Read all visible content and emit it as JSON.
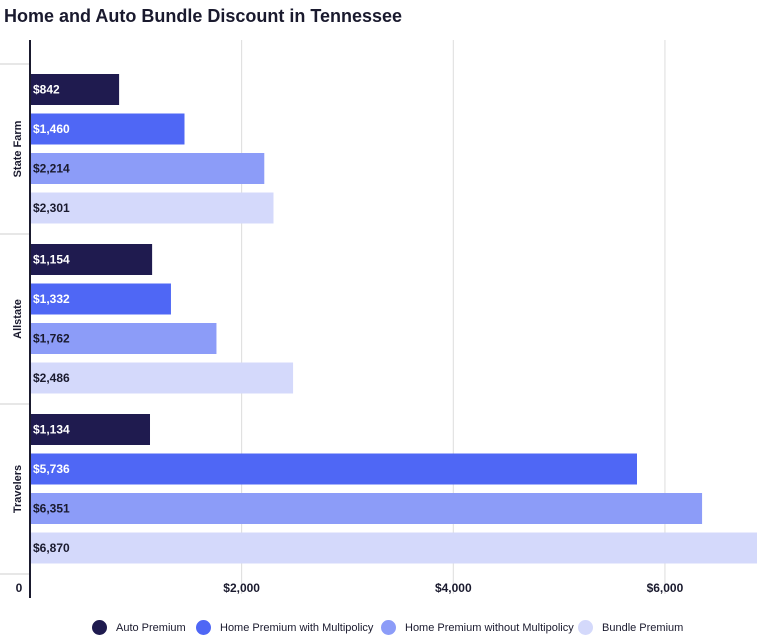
{
  "title": "Home and Auto Bundle Discount in Tennessee",
  "colors": {
    "auto": "#1f1b4f",
    "with_multi": "#4f67f5",
    "without_multi": "#8c9cf8",
    "bundle": "#d4d9fb",
    "grid": "#dcdcdc",
    "axis": "#1a1a2e"
  },
  "chart_data": {
    "type": "bar",
    "orientation": "horizontal",
    "categories": [
      "State Farm",
      "Allstate",
      "Travelers"
    ],
    "series": [
      {
        "name": "Auto Premium",
        "values": [
          842,
          1154,
          1134
        ],
        "labels": [
          "$842",
          "$1,154",
          "$1,134"
        ]
      },
      {
        "name": "Home Premium with Multipolicy",
        "values": [
          1460,
          1332,
          5736
        ],
        "labels": [
          "$1,460",
          "$1,332",
          "$5,736"
        ]
      },
      {
        "name": "Home Premium without Multipolicy",
        "values": [
          2214,
          1762,
          6351
        ],
        "labels": [
          "$2,214",
          "$1,762",
          "$6,351"
        ]
      },
      {
        "name": "Bundle Premium",
        "values": [
          2301,
          2486,
          6870
        ],
        "labels": [
          "$2,301",
          "$2,486",
          "$6,870"
        ]
      }
    ],
    "xticks": [
      0,
      2000,
      4000,
      6000
    ],
    "xtick_labels": [
      "0",
      "$2,000",
      "$4,000",
      "$6,000"
    ],
    "xlim": [
      0,
      6870
    ],
    "grid": true,
    "legend_position": "bottom"
  }
}
